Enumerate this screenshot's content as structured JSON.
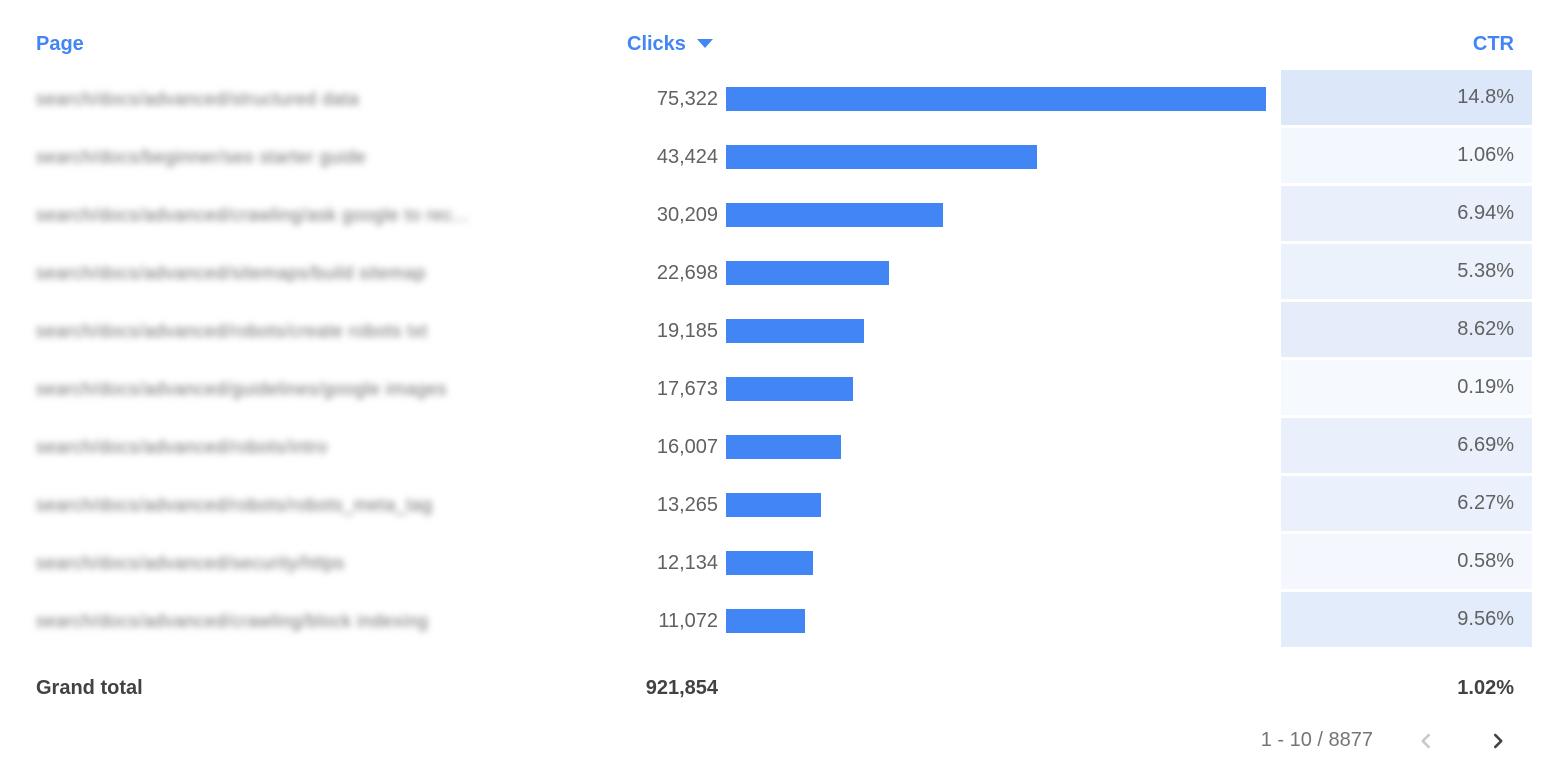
{
  "colors": {
    "accent": "#4285f4",
    "bar": "#4285f4",
    "body_text": "#616161",
    "page_text": "#6e6e6e",
    "total_text": "#424242",
    "pagination_text": "#757575",
    "prev_icon": "#c9c9c9",
    "next_icon": "#424242"
  },
  "header": {
    "page_label": "Page",
    "clicks_label": "Clicks",
    "ctr_label": "CTR",
    "sorted_column": "Clicks",
    "sort_direction": "desc",
    "sort_icon": "triangle-down-icon"
  },
  "rows": [
    {
      "page": "search/docs/advanced/structured data",
      "page_blurred": true,
      "clicks": 75322,
      "clicks_label": "75,322",
      "ctr": "14.8%",
      "ctr_bg": "#dce7fa"
    },
    {
      "page": "search/docs/beginner/seo starter guide",
      "page_blurred": true,
      "clicks": 43424,
      "clicks_label": "43,424",
      "ctr": "1.06%",
      "ctr_bg": "#f3f7fe"
    },
    {
      "page": "search/docs/advanced/crawling/ask google to rec...",
      "page_blurred": true,
      "clicks": 30209,
      "clicks_label": "30,209",
      "ctr": "6.94%",
      "ctr_bg": "#e9f0fc"
    },
    {
      "page": "search/docs/advanced/sitemaps/build sitemap",
      "page_blurred": true,
      "clicks": 22698,
      "clicks_label": "22,698",
      "ctr": "5.38%",
      "ctr_bg": "#ebf2fc"
    },
    {
      "page": "search/docs/advanced/robots/create robots txt",
      "page_blurred": true,
      "clicks": 19185,
      "clicks_label": "19,185",
      "ctr": "8.62%",
      "ctr_bg": "#e5edfb"
    },
    {
      "page": "search/docs/advanced/guidelines/google images",
      "page_blurred": true,
      "clicks": 17673,
      "clicks_label": "17,673",
      "ctr": "0.19%",
      "ctr_bg": "#f6f9fe"
    },
    {
      "page": "search/docs/advanced/robots/intro",
      "page_blurred": true,
      "clicks": 16007,
      "clicks_label": "16,007",
      "ctr": "6.69%",
      "ctr_bg": "#e9f0fc"
    },
    {
      "page": "search/docs/advanced/robots/robots_meta_tag",
      "page_blurred": true,
      "clicks": 13265,
      "clicks_label": "13,265",
      "ctr": "6.27%",
      "ctr_bg": "#eaf1fc"
    },
    {
      "page": "search/docs/advanced/security/https",
      "page_blurred": true,
      "clicks": 12134,
      "clicks_label": "12,134",
      "ctr": "0.58%",
      "ctr_bg": "#f4f8fe"
    },
    {
      "page": "search/docs/advanced/crawling/block indexing",
      "page_blurred": true,
      "clicks": 11072,
      "clicks_label": "11,072",
      "ctr": "9.56%",
      "ctr_bg": "#e3ecfb"
    }
  ],
  "grand_total": {
    "label": "Grand total",
    "clicks_label": "921,854",
    "ctr": "1.02%"
  },
  "pagination": {
    "range_label": "1 - 10 / 8877",
    "prev_enabled": false,
    "next_enabled": true
  },
  "chart_data": {
    "type": "table",
    "columns": [
      "Page",
      "Clicks",
      "CTR"
    ],
    "bar_column": "Clicks",
    "bar_max": 75322,
    "sort": {
      "column": "Clicks",
      "direction": "desc"
    },
    "rows": [
      {
        "page": "search/docs/advanced/structured data (blurred)",
        "clicks": 75322,
        "ctr_pct": 14.8
      },
      {
        "page": "search/docs/beginner/seo starter guide (blurred)",
        "clicks": 43424,
        "ctr_pct": 1.06
      },
      {
        "page": "search/docs/advanced/crawling/ask google to rec... (blurred)",
        "clicks": 30209,
        "ctr_pct": 6.94
      },
      {
        "page": "search/docs/advanced/sitemaps/build sitemap (blurred)",
        "clicks": 22698,
        "ctr_pct": 5.38
      },
      {
        "page": "search/docs/advanced/robots/create robots txt (blurred)",
        "clicks": 19185,
        "ctr_pct": 8.62
      },
      {
        "page": "search/docs/advanced/guidelines/google images (blurred)",
        "clicks": 17673,
        "ctr_pct": 0.19
      },
      {
        "page": "search/docs/advanced/robots/intro (blurred)",
        "clicks": 16007,
        "ctr_pct": 6.69
      },
      {
        "page": "search/docs/advanced/robots/robots_meta_tag (blurred)",
        "clicks": 13265,
        "ctr_pct": 6.27
      },
      {
        "page": "search/docs/advanced/security/https (blurred)",
        "clicks": 12134,
        "ctr_pct": 0.58
      },
      {
        "page": "search/docs/advanced/crawling/block indexing (blurred)",
        "clicks": 11072,
        "ctr_pct": 9.56
      }
    ],
    "grand_total": {
      "clicks": 921854,
      "ctr_pct": 1.02
    },
    "visible_range": "1 - 10",
    "total_rows": 8877
  }
}
